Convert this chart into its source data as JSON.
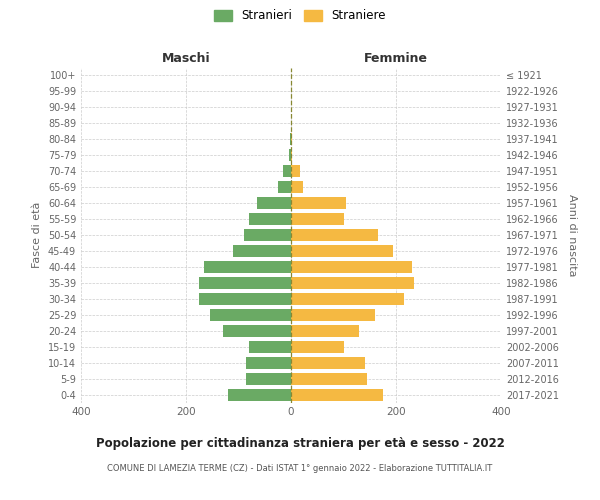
{
  "age_groups": [
    "0-4",
    "5-9",
    "10-14",
    "15-19",
    "20-24",
    "25-29",
    "30-34",
    "35-39",
    "40-44",
    "45-49",
    "50-54",
    "55-59",
    "60-64",
    "65-69",
    "70-74",
    "75-79",
    "80-84",
    "85-89",
    "90-94",
    "95-99",
    "100+"
  ],
  "birth_years": [
    "2017-2021",
    "2012-2016",
    "2007-2011",
    "2002-2006",
    "1997-2001",
    "1992-1996",
    "1987-1991",
    "1982-1986",
    "1977-1981",
    "1972-1976",
    "1967-1971",
    "1962-1966",
    "1957-1961",
    "1952-1956",
    "1947-1951",
    "1942-1946",
    "1937-1941",
    "1932-1936",
    "1927-1931",
    "1922-1926",
    "≤ 1921"
  ],
  "males": [
    120,
    85,
    85,
    80,
    130,
    155,
    175,
    175,
    165,
    110,
    90,
    80,
    65,
    25,
    15,
    3,
    1,
    0,
    0,
    0,
    0
  ],
  "females": [
    175,
    145,
    140,
    100,
    130,
    160,
    215,
    235,
    230,
    195,
    165,
    100,
    105,
    22,
    18,
    2,
    1,
    0,
    0,
    0,
    0
  ],
  "male_color": "#6aaa64",
  "female_color": "#f5b942",
  "background_color": "#ffffff",
  "grid_color": "#cccccc",
  "title": "Popolazione per cittadinanza straniera per età e sesso - 2022",
  "subtitle": "COMUNE DI LAMEZIA TERME (CZ) - Dati ISTAT 1° gennaio 2022 - Elaborazione TUTTITALIA.IT",
  "left_header": "Maschi",
  "right_header": "Femmine",
  "ylabel_left": "Fasce di età",
  "ylabel_right": "Anni di nascita",
  "legend_male": "Stranieri",
  "legend_female": "Straniere",
  "xlim": 400,
  "bar_height": 0.75
}
